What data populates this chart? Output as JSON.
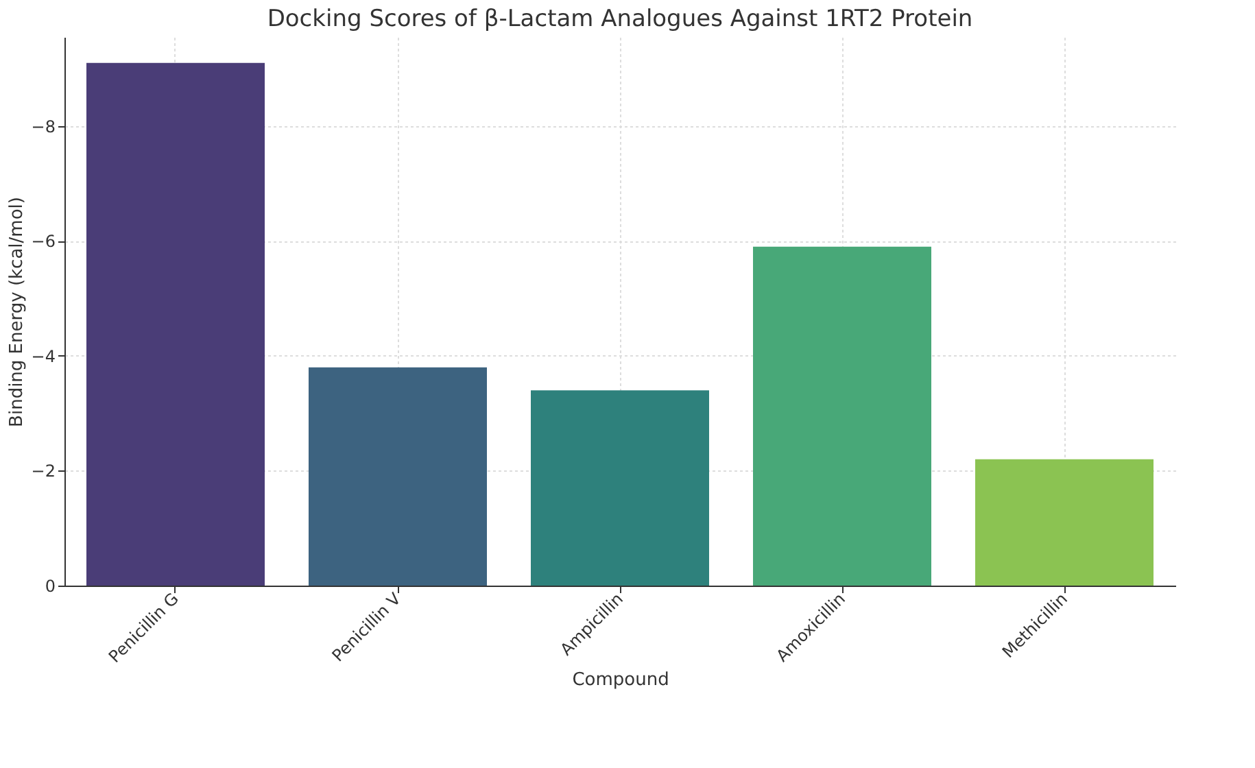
{
  "chart_data": {
    "type": "bar",
    "title": "Docking Scores of β-Lactam Analogues Against 1RT2 Protein",
    "xlabel": "Compound",
    "ylabel": "Binding Energy (kcal/mol)",
    "categories": [
      "Penicillin G",
      "Penicillin V",
      "Ampicillin",
      "Amoxicillin",
      "Methicillin"
    ],
    "values": [
      -9.1,
      -3.8,
      -3.4,
      -5.9,
      -2.2
    ],
    "colors": [
      "#4a3d77",
      "#3d6380",
      "#2e817c",
      "#48a878",
      "#8bc352"
    ],
    "ylim": [
      0,
      -9.55
    ],
    "yticks": [
      0,
      -2,
      -4,
      -6,
      -8
    ],
    "grid": true
  }
}
